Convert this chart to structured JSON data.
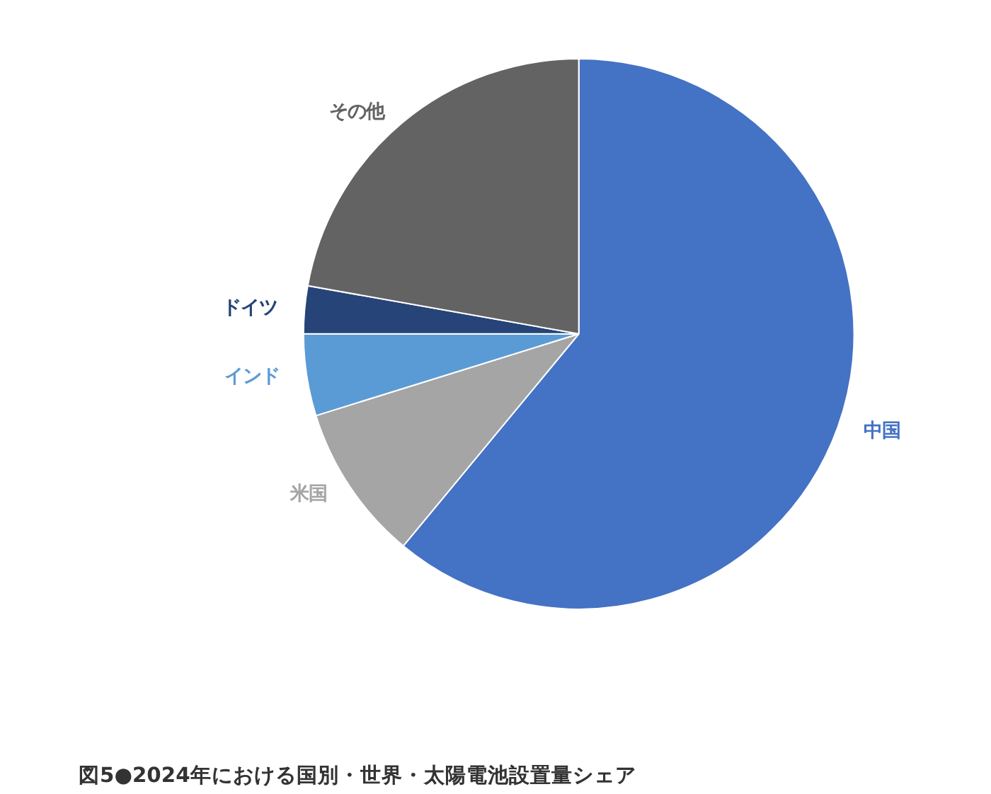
{
  "chart_data": {
    "type": "pie",
    "title": "図5●2024年における国別・世界・太陽電池設置量シェア",
    "categories": [
      "中国",
      "米国",
      "インド",
      "ドイツ",
      "その他"
    ],
    "values": [
      61.0,
      9.2,
      4.8,
      2.8,
      22.2
    ],
    "colors": [
      "#4472c4",
      "#a5a5a5",
      "#5b9bd5",
      "#264478",
      "#636363"
    ]
  }
}
